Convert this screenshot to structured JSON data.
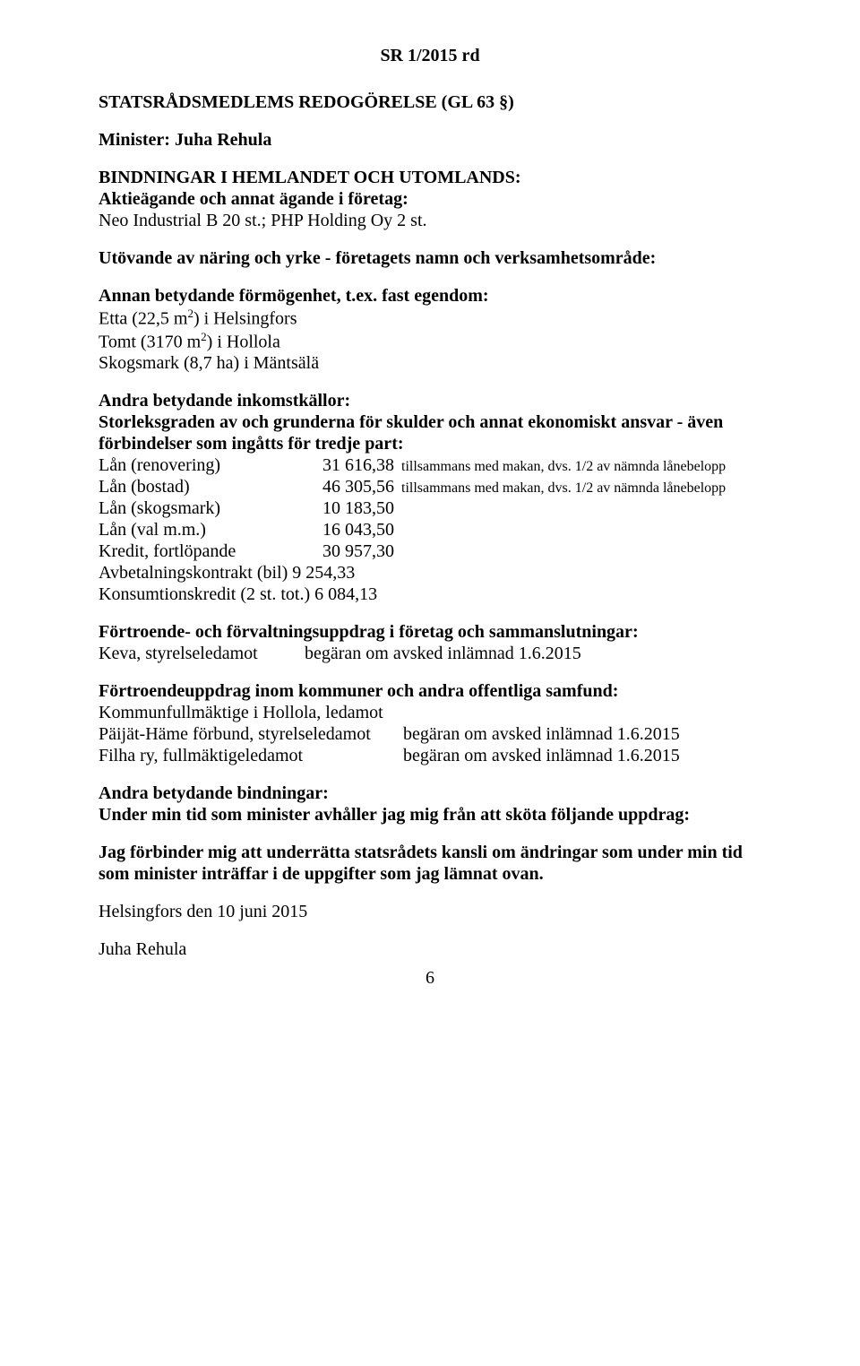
{
  "header": "SR 1/2015 rd",
  "title": "STATSRÅDSMEDLEMS REDOGÖRELSE (GL 63 §)",
  "minister_label": "Minister: Juha Rehula",
  "bindings_heading": "BINDNINGAR I HEMLANDET OCH UTOMLANDS:",
  "shareholding_heading": "Aktieägande och annat ägande i företag:",
  "shareholding_text": "Neo Industrial B 20 st.; PHP Holding Oy 2 st.",
  "profession_heading": "Utövande av näring och yrke - företagets namn och verksamhetsområde:",
  "wealth_heading": "Annan betydande förmögenhet, t.ex. fast egendom:",
  "wealth_line1_a": "Etta (22,5 m",
  "wealth_line1_b": ") i Helsingfors",
  "wealth_line2_a": "Tomt (3170 m",
  "wealth_line2_b": ") i Hollola",
  "wealth_line3": "Skogsmark (8,7 ha) i Mäntsälä",
  "sup2": "2",
  "income_heading": "Andra betydande inkomstkällor:",
  "debts_heading": "Storleksgraden av och grunderna för skulder och annat ekonomiskt ansvar - även förbindelser som ingåtts för tredje part:",
  "loans": [
    {
      "label": "Lån (renovering)",
      "value": "31 616,38",
      "note": "tillsammans med makan, dvs. 1/2 av nämnda lånebelopp"
    },
    {
      "label": "Lån (bostad)",
      "value": "46 305,56",
      "note": "tillsammans med makan, dvs. 1/2 av nämnda lånebelopp"
    },
    {
      "label": "Lån (skogsmark)",
      "value": "10 183,50",
      "note": ""
    },
    {
      "label": "Lån (val m.m.)",
      "value": "16 043,50",
      "note": ""
    },
    {
      "label": "Kredit, fortlöpande",
      "value": "30 957,30",
      "note": ""
    }
  ],
  "installment": "Avbetalningskontrakt (bil)  9 254,33",
  "consumer_credit": "Konsumtionskredit (2 st. tot.) 6 084,13",
  "trust_heading": "Förtroende- och förvaltningsuppdrag i företag och sammanslutningar:",
  "keva_left": "Keva, styrelseledamot",
  "keva_right": "begäran om avsked inlämnad 1.6.2015",
  "municipal_heading": "Förtroendeuppdrag inom kommuner och andra offentliga samfund:",
  "municipal_line1": "Kommunfullmäktige i Hollola, ledamot",
  "assignments": [
    {
      "left": "Päijät-Häme förbund, styrelseledamot",
      "right": "begäran om avsked inlämnad 1.6.2015"
    },
    {
      "left": "Filha ry, fullmäktigeledamot",
      "right": "begäran om avsked inlämnad 1.6.2015"
    }
  ],
  "other_heading": "Andra betydande bindningar:",
  "other_text": "Under min tid som minister avhåller jag mig från att sköta följande uppdrag:",
  "undertake_text": "Jag förbinder mig att underrätta statsrådets kansli om ändringar som under min tid som minister inträffar i de uppgifter som jag lämnat ovan.",
  "date_place": "Helsingfors den 10 juni 2015",
  "signature": "Juha Rehula",
  "page_number": "6"
}
